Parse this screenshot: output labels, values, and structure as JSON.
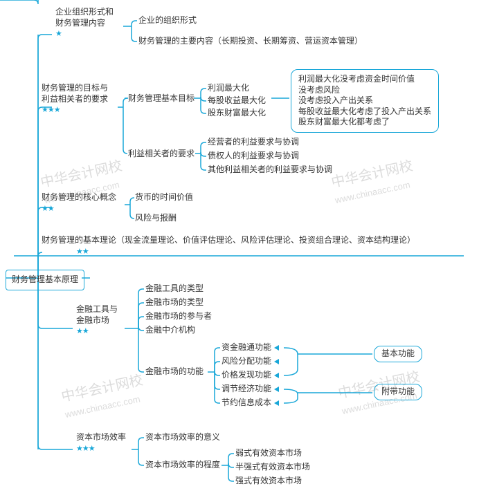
{
  "colors": {
    "line": "#19a7d8",
    "text": "#333333",
    "bg": "#ffffff",
    "watermark": "#dcdcdc"
  },
  "style": {
    "line_width": 1.5,
    "corner_radius": 6,
    "font_size": 12,
    "star_glyph": "★"
  },
  "root": {
    "label": "财务管理基本原理"
  },
  "branches": {
    "b1": {
      "title_l1": "企业组织形式和",
      "title_l2": "财务管理内容",
      "stars": 1,
      "children": {
        "c1": "企业的组织形式",
        "c2": "财务管理的主要内容（长期投资、长期筹资、营运资本管理）"
      }
    },
    "b2": {
      "title_l1": "财务管理的目标与",
      "title_l2": "利益相关者的要求",
      "stars": 3,
      "children": {
        "goals": {
          "label": "财务管理基本目标",
          "items": {
            "g1": "利润最大化",
            "g2": "每股收益最大化",
            "g3": "股东财富最大化"
          },
          "note": {
            "n1": "利润最大化没考虑资金时间价值",
            "n2": "没考虑风险",
            "n3": "没考虑投入产出关系",
            "n4": "每股收益最大化考虑了投入产出关系",
            "n5": "股东财富最大化都考虑了"
          }
        },
        "stake": {
          "label": "利益相关者的要求",
          "items": {
            "s1": "经营者的利益要求与协调",
            "s2": "债权人的利益要求与协调",
            "s3": "其他利益相关者的利益要求与协调"
          }
        }
      }
    },
    "b3": {
      "title": "财务管理的核心概念",
      "stars": 2,
      "children": {
        "c1": "货币的时间价值",
        "c2": "风险与报酬"
      }
    },
    "b4": {
      "title": "财务管理的基本理论（现金流量理论、价值评估理论、风险评估理论、投资组合理论、资本结构理论）",
      "stars": 2
    },
    "b5": {
      "title_l1": "金融工具与",
      "title_l2": "金融市场",
      "stars": 2,
      "children": {
        "c1": "金融工具的类型",
        "c2": "金融市场的类型",
        "c3": "金融市场的参与者",
        "c4": "金融中介机构",
        "func": {
          "label": "金融市场的功能",
          "items": {
            "f1": "资金融通功能",
            "f2": "风险分配功能",
            "f3": "价格发现功能",
            "f4": "调节经济功能",
            "f5": "节约信息成本"
          },
          "groups": {
            "basic": "基本功能",
            "extra": "附带功能"
          }
        }
      }
    },
    "b6": {
      "title": "资本市场效率",
      "stars": 3,
      "children": {
        "c1": "资本市场效率的意义",
        "degree": {
          "label": "资本市场效率的程度",
          "items": {
            "d1": "弱式有效资本市场",
            "d2": "半强式有效资本市场",
            "d3": "强式有效资本市场"
          }
        }
      }
    }
  },
  "watermark": {
    "text": "中华会计网校",
    "url": "www.chinaacc.com"
  }
}
